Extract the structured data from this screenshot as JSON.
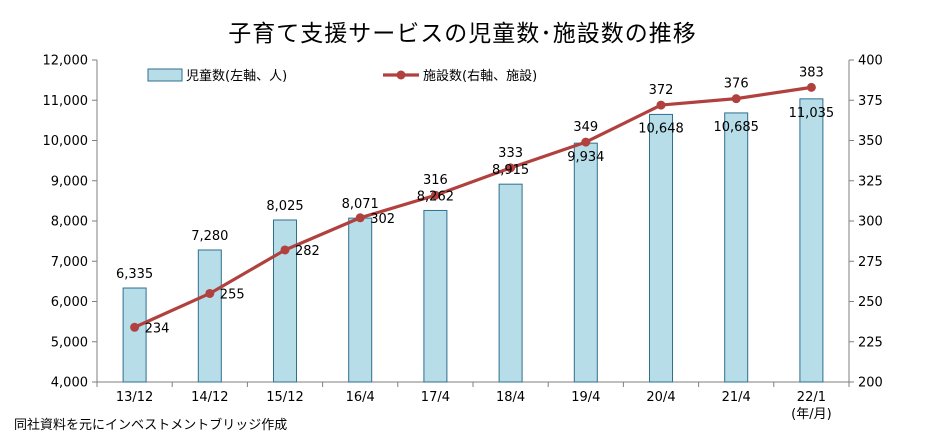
{
  "title": "子育て支援サービスの児童数･施設数の推移",
  "source_note": "同社資料を元にインベストメントブリッジ作成",
  "colors": {
    "bar_fill": "#b7dde8",
    "bar_stroke": "#2f6f8f",
    "line": "#b0413e",
    "axis": "#7f7f7f"
  },
  "chart_data": {
    "type": "bar+line",
    "categories": [
      "13/12",
      "14/12",
      "15/12",
      "16/4",
      "17/4",
      "18/4",
      "19/4",
      "20/4",
      "21/4",
      "22/1"
    ],
    "x_unit_label": "(年/月)",
    "series": [
      {
        "name": "児童数(左軸、人)",
        "type": "bar",
        "axis": "left",
        "values": [
          6335,
          7280,
          8025,
          8071,
          8262,
          8915,
          9934,
          10648,
          10685,
          11035
        ],
        "labels": [
          "6,335",
          "7,280",
          "8,025",
          "8,071",
          "8,262",
          "8,915",
          "9,934",
          "10,648",
          "10,685",
          "11,035"
        ]
      },
      {
        "name": "施設数(右軸、施設)",
        "type": "line",
        "axis": "right",
        "values": [
          234,
          255,
          282,
          302,
          316,
          333,
          349,
          372,
          376,
          383
        ],
        "labels": [
          "234",
          "255",
          "282",
          "302",
          "316",
          "333",
          "349",
          "372",
          "376",
          "383"
        ]
      }
    ],
    "y_left": {
      "min": 4000,
      "max": 12000,
      "ticks": [
        4000,
        5000,
        6000,
        7000,
        8000,
        9000,
        10000,
        11000,
        12000
      ],
      "tick_labels": [
        "4,000",
        "5,000",
        "6,000",
        "7,000",
        "8,000",
        "9,000",
        "10,000",
        "11,000",
        "12,000"
      ]
    },
    "y_right": {
      "min": 200,
      "max": 400,
      "ticks": [
        200,
        225,
        250,
        275,
        300,
        325,
        350,
        375,
        400
      ],
      "tick_labels": [
        "200",
        "225",
        "250",
        "275",
        "300",
        "325",
        "350",
        "375",
        "400"
      ]
    },
    "grid": false,
    "legend_position": "top-left"
  }
}
